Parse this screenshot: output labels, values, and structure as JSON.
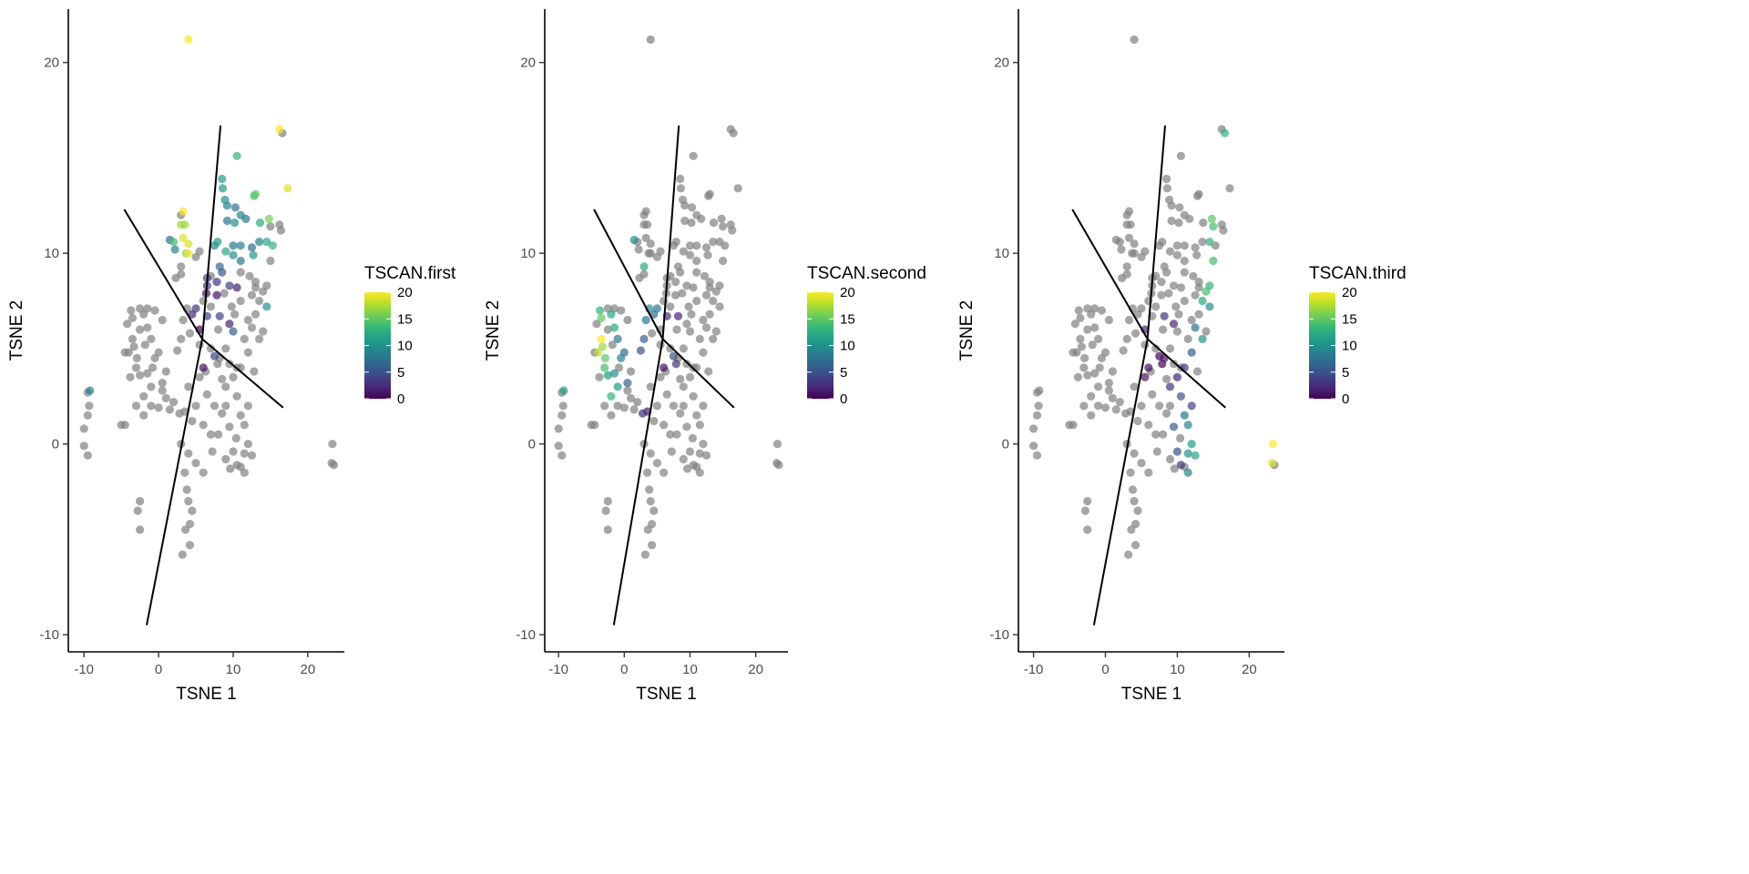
{
  "chart_data": [
    {
      "type": "scatter",
      "xlabel": "TSNE 1",
      "ylabel": "TSNE 2",
      "legend_title": "TSCAN.first",
      "color_column": "TSCAN.first"
    },
    {
      "type": "scatter",
      "xlabel": "TSNE 1",
      "ylabel": "TSNE 2",
      "legend_title": "TSCAN.second",
      "color_column": "TSCAN.second"
    },
    {
      "type": "scatter",
      "xlabel": "TSNE 1",
      "ylabel": "TSNE 2",
      "legend_title": "TSCAN.third",
      "color_column": "TSCAN.third"
    }
  ],
  "shared": {
    "xlim": [
      -12.1,
      24.9
    ],
    "ylim": [
      -10.9,
      22.8
    ],
    "xticks": [
      -10,
      0,
      10,
      20
    ],
    "yticks": [
      -10,
      0,
      10,
      20
    ],
    "color_ticks": [
      0,
      5,
      10,
      15,
      20
    ],
    "color_range": [
      0,
      20
    ],
    "colormap": "viridis",
    "na_color": "#808080",
    "line_color": "#000000",
    "grid": false,
    "legend_position": "right",
    "trajectory": [
      [
        [
          -1.6,
          -9.5
        ],
        [
          5.85,
          5.5
        ],
        [
          8.3,
          16.7
        ]
      ],
      [
        [
          -4.6,
          12.3
        ],
        [
          5.85,
          5.5
        ],
        [
          16.7,
          1.9
        ]
      ]
    ],
    "columns": [
      "x",
      "y",
      "TSCAN.first",
      "TSCAN.second",
      "TSCAN.third"
    ],
    "points": [
      [
        4,
        21.2,
        20,
        null,
        null
      ],
      [
        16.2,
        16.5,
        20,
        null,
        null
      ],
      [
        16.6,
        16.3,
        null,
        null,
        13
      ],
      [
        17.3,
        13.4,
        19,
        null,
        null
      ],
      [
        10.5,
        15.1,
        13,
        null,
        null
      ],
      [
        12.8,
        13.0,
        14,
        null,
        null
      ],
      [
        13,
        13.1,
        15,
        null,
        null
      ],
      [
        8.5,
        13.9,
        11,
        null,
        null
      ],
      [
        8.6,
        13.4,
        11,
        null,
        null
      ],
      [
        8.9,
        12.8,
        10,
        null,
        null
      ],
      [
        9.2,
        12.5,
        9,
        null,
        null
      ],
      [
        10.3,
        12.4,
        8,
        null,
        null
      ],
      [
        11,
        12.0,
        9,
        null,
        null
      ],
      [
        11.7,
        11.8,
        8,
        null,
        null
      ],
      [
        9.2,
        11.7,
        8,
        null,
        null
      ],
      [
        10.2,
        11.6,
        10,
        null,
        null
      ],
      [
        13.6,
        11.6,
        12,
        null,
        null
      ],
      [
        14.8,
        11.8,
        16,
        null,
        15
      ],
      [
        15,
        11.4,
        null,
        null,
        14
      ],
      [
        14.5,
        10.6,
        12,
        null,
        13
      ],
      [
        15.3,
        10.4,
        13,
        null,
        null
      ],
      [
        16.2,
        11.5,
        null,
        null,
        null
      ],
      [
        16.4,
        11.2,
        null,
        null,
        null
      ],
      [
        3,
        12.0,
        null,
        null,
        null
      ],
      [
        3.3,
        12.2,
        20,
        null,
        null
      ],
      [
        3,
        11.5,
        17,
        null,
        null
      ],
      [
        3.5,
        11.5,
        17,
        null,
        null
      ],
      [
        1.5,
        10.7,
        7,
        10,
        null
      ],
      [
        2,
        10.6,
        14,
        null,
        null
      ],
      [
        3.3,
        10.8,
        19,
        null,
        null
      ],
      [
        4,
        10.5,
        19,
        null,
        null
      ],
      [
        4,
        10,
        20,
        null,
        null
      ],
      [
        3.7,
        10,
        16,
        null,
        null
      ],
      [
        2.2,
        10.2,
        9,
        null,
        null
      ],
      [
        5.5,
        10.1,
        null,
        null,
        null
      ],
      [
        7.5,
        10.4,
        9,
        null,
        null
      ],
      [
        7.9,
        10.6,
        11,
        null,
        null
      ],
      [
        9,
        10.1,
        12,
        null,
        null
      ],
      [
        10,
        10.4,
        8,
        null,
        null
      ],
      [
        11,
        10.4,
        9,
        null,
        null
      ],
      [
        12.5,
        10.3,
        7,
        null,
        null
      ],
      [
        13.5,
        10.6,
        9,
        null,
        null
      ],
      [
        12.7,
        9.9,
        11,
        null,
        null
      ],
      [
        10,
        9.9,
        10,
        null,
        null
      ],
      [
        11,
        9.6,
        8,
        null,
        null
      ],
      [
        8.2,
        9.3,
        7,
        null,
        null
      ],
      [
        8.5,
        9,
        5,
        null,
        null
      ],
      [
        6.5,
        8.7,
        4,
        null,
        null
      ],
      [
        6.5,
        8.3,
        3,
        null,
        null
      ],
      [
        7.8,
        8.5,
        3,
        null,
        null
      ],
      [
        9.5,
        8.3,
        4,
        null,
        null
      ],
      [
        10.5,
        8.2,
        2,
        null,
        null
      ],
      [
        6.4,
        7.9,
        1,
        null,
        null
      ],
      [
        7.8,
        7.8,
        1,
        null,
        null
      ],
      [
        3,
        9.3,
        null,
        12,
        null
      ],
      [
        3,
        8.9,
        null,
        null,
        null
      ],
      [
        2.3,
        8.7,
        null,
        null,
        null
      ],
      [
        5,
        7.1,
        3,
        8,
        null
      ],
      [
        4.5,
        6.8,
        2,
        7,
        null
      ],
      [
        6.5,
        6.7,
        4,
        3,
        null
      ],
      [
        8.2,
        6.7,
        4,
        2,
        3
      ],
      [
        9.5,
        6.3,
        2,
        null,
        2
      ],
      [
        5.5,
        6.0,
        0,
        null,
        2
      ],
      [
        10,
        5.9,
        6,
        null,
        null
      ],
      [
        12,
        6.5,
        null,
        null,
        null
      ],
      [
        14.5,
        7.2,
        10,
        null,
        10
      ],
      [
        13.5,
        7.5,
        null,
        null,
        12
      ],
      [
        14,
        8,
        null,
        null,
        14
      ],
      [
        14.5,
        8.3,
        null,
        null,
        13
      ],
      [
        15,
        9.6,
        null,
        null,
        14
      ],
      [
        12.5,
        6.1,
        null,
        null,
        8
      ],
      [
        13.5,
        5.5,
        null,
        null,
        10
      ],
      [
        12,
        4.8,
        null,
        null,
        6
      ],
      [
        11,
        4,
        null,
        null,
        4
      ],
      [
        10,
        3.5,
        null,
        null,
        2
      ],
      [
        8.2,
        4.5,
        null,
        null,
        1
      ],
      [
        7.5,
        4.6,
        4,
        5,
        0
      ],
      [
        7.9,
        4.2,
        null,
        3,
        0
      ],
      [
        6,
        4,
        1,
        1,
        1
      ],
      [
        5.5,
        3.5,
        null,
        null,
        1
      ],
      [
        6.3,
        3.8,
        null,
        null,
        null
      ],
      [
        9,
        3.0,
        null,
        null,
        3
      ],
      [
        10.5,
        2.5,
        null,
        null,
        5
      ],
      [
        12,
        2.0,
        null,
        null,
        4
      ],
      [
        11,
        1.5,
        null,
        null,
        8
      ],
      [
        9.5,
        0.9,
        null,
        null,
        6
      ],
      [
        11.5,
        1.0,
        null,
        null,
        9
      ],
      [
        12,
        0,
        null,
        null,
        11
      ],
      [
        11.5,
        -0.5,
        null,
        null,
        10
      ],
      [
        12.5,
        -0.6,
        null,
        null,
        12
      ],
      [
        10,
        -0.4,
        null,
        null,
        5
      ],
      [
        10.5,
        -1.1,
        null,
        null,
        3
      ],
      [
        11.5,
        -1.5,
        null,
        null,
        9
      ],
      [
        9,
        -0.8,
        null,
        null,
        null
      ],
      [
        11,
        -1.2,
        null,
        null,
        null
      ],
      [
        -4,
        4.8,
        null,
        18,
        null
      ],
      [
        -3.5,
        5.5,
        null,
        20,
        null
      ],
      [
        -3.3,
        5.1,
        null,
        17,
        null
      ],
      [
        -2.9,
        4.5,
        null,
        15,
        null
      ],
      [
        -3,
        4.0,
        null,
        14,
        null
      ],
      [
        -3.7,
        7.0,
        null,
        13,
        null
      ],
      [
        -3.5,
        6.6,
        null,
        15,
        null
      ],
      [
        -2,
        6.8,
        null,
        12,
        null
      ],
      [
        -1.5,
        6.1,
        null,
        12,
        null
      ],
      [
        -1,
        5.5,
        null,
        8,
        null
      ],
      [
        -0.5,
        4.5,
        null,
        9,
        null
      ],
      [
        0,
        4.8,
        null,
        7,
        null
      ],
      [
        -1.5,
        3.7,
        null,
        10,
        null
      ],
      [
        -2.5,
        3.6,
        null,
        11,
        null
      ],
      [
        -1,
        3,
        null,
        11,
        null
      ],
      [
        -2,
        2.5,
        null,
        13,
        null
      ],
      [
        0.5,
        3.2,
        null,
        6,
        null
      ],
      [
        2.5,
        4.9,
        null,
        5,
        null
      ],
      [
        3,
        5.5,
        null,
        6,
        null
      ],
      [
        3.3,
        6.5,
        null,
        8,
        null
      ],
      [
        3.8,
        7.1,
        null,
        10,
        null
      ],
      [
        2.8,
        1.6,
        null,
        3,
        null
      ],
      [
        3.5,
        1.7,
        null,
        2,
        null
      ],
      [
        -4.5,
        4.8,
        null,
        null,
        null
      ],
      [
        -2.5,
        6.0,
        null,
        null,
        null
      ],
      [
        -3,
        2,
        null,
        null,
        null
      ],
      [
        -1,
        2,
        null,
        null,
        null
      ],
      [
        0,
        1.9,
        null,
        null,
        null
      ],
      [
        1,
        2.4,
        null,
        null,
        null
      ],
      [
        2,
        2.2,
        null,
        null,
        null
      ],
      [
        -5,
        1,
        null,
        null,
        null
      ],
      [
        -4.5,
        1,
        null,
        null,
        null
      ],
      [
        1,
        3.8,
        null,
        null,
        null
      ],
      [
        -3.8,
        3.5,
        null,
        null,
        null
      ],
      [
        -2,
        1.5,
        null,
        null,
        null
      ],
      [
        4,
        3,
        null,
        null,
        null
      ],
      [
        5,
        2,
        null,
        null,
        null
      ],
      [
        6,
        1,
        null,
        null,
        null
      ],
      [
        7,
        0.5,
        null,
        null,
        null
      ],
      [
        8,
        0.5,
        null,
        null,
        null
      ],
      [
        7.5,
        2,
        null,
        null,
        null
      ],
      [
        9,
        2,
        null,
        null,
        null
      ],
      [
        3,
        0,
        null,
        null,
        null
      ],
      [
        4,
        -0.5,
        null,
        null,
        null
      ],
      [
        5,
        -1,
        null,
        null,
        null
      ],
      [
        6,
        -1.5,
        null,
        null,
        null
      ],
      [
        3.5,
        -1.5,
        null,
        null,
        null
      ],
      [
        3.8,
        -2.4,
        null,
        null,
        null
      ],
      [
        4,
        -3,
        null,
        null,
        null
      ],
      [
        4.5,
        -3.5,
        null,
        null,
        null
      ],
      [
        4.2,
        -4.2,
        null,
        null,
        null
      ],
      [
        3.6,
        -4.5,
        null,
        null,
        null
      ],
      [
        4.2,
        -5.3,
        null,
        null,
        null
      ],
      [
        3.2,
        -5.8,
        null,
        null,
        null
      ],
      [
        -2.5,
        -3,
        null,
        null,
        null
      ],
      [
        -2.8,
        -3.5,
        null,
        null,
        null
      ],
      [
        -2.5,
        -4.5,
        null,
        null,
        null
      ],
      [
        -10,
        -0.1,
        null,
        null,
        null
      ],
      [
        -9.5,
        -0.6,
        null,
        null,
        null
      ],
      [
        -10,
        0.8,
        null,
        null,
        null
      ],
      [
        -9.5,
        1.5,
        null,
        null,
        null
      ],
      [
        -9.3,
        2,
        null,
        null,
        null
      ],
      [
        -9.5,
        2.7,
        null,
        null,
        null
      ],
      [
        -9.2,
        2.8,
        9,
        11,
        null
      ],
      [
        23.3,
        0,
        null,
        null,
        20
      ],
      [
        23.2,
        -1,
        null,
        null,
        19
      ],
      [
        23.5,
        -1.1,
        null,
        null,
        null
      ],
      [
        7,
        5,
        null,
        null,
        null
      ],
      [
        8,
        6,
        null,
        null,
        null
      ],
      [
        9,
        5,
        null,
        null,
        null
      ],
      [
        10.5,
        4,
        null,
        null,
        null
      ],
      [
        11,
        7.5,
        null,
        null,
        null
      ],
      [
        12.5,
        7.8,
        null,
        null,
        null
      ],
      [
        13,
        8.2,
        null,
        null,
        null
      ],
      [
        9.8,
        7.2,
        null,
        null,
        null
      ],
      [
        11,
        9,
        null,
        null,
        null
      ],
      [
        12.2,
        8.8,
        null,
        null,
        null
      ],
      [
        13,
        8.5,
        null,
        null,
        null
      ],
      [
        7,
        8.8,
        null,
        null,
        null
      ],
      [
        5,
        9.8,
        null,
        null,
        null
      ],
      [
        6,
        7.5,
        null,
        null,
        null
      ],
      [
        0.5,
        6.5,
        null,
        null,
        null
      ],
      [
        -0.5,
        7,
        null,
        null,
        null
      ],
      [
        -2.5,
        7.1,
        null,
        null,
        null
      ],
      [
        -1.5,
        7.1,
        null,
        null,
        null
      ],
      [
        -4.2,
        6.3,
        null,
        null,
        null
      ],
      [
        -1.8,
        5.2,
        null,
        null,
        null
      ],
      [
        -0.8,
        4.0,
        null,
        null,
        null
      ],
      [
        0.5,
        2.8,
        null,
        null,
        null
      ],
      [
        1.5,
        1.8,
        null,
        null,
        null
      ],
      [
        4.5,
        1.2,
        null,
        null,
        null
      ],
      [
        6.5,
        2.6,
        null,
        null,
        null
      ],
      [
        8.5,
        3.4,
        null,
        null,
        null
      ],
      [
        9.5,
        4.2,
        null,
        null,
        null
      ],
      [
        11.5,
        5.5,
        null,
        null,
        null
      ],
      [
        13,
        6.8,
        null,
        null,
        null
      ],
      [
        14,
        5.9,
        null,
        null,
        null
      ],
      [
        12.8,
        3.8,
        null,
        null,
        null
      ],
      [
        8.5,
        1.6,
        null,
        null,
        null
      ],
      [
        7.2,
        -0.4,
        null,
        null,
        null
      ],
      [
        9.6,
        -1.3,
        null,
        null,
        null
      ],
      [
        10.4,
        0.3,
        null,
        null,
        null
      ],
      [
        5.5,
        5.2,
        null,
        null,
        null
      ],
      [
        4.2,
        5.8,
        null,
        null,
        null
      ],
      [
        7,
        7.2,
        null,
        null,
        null
      ],
      [
        8.8,
        7.9,
        null,
        null,
        null
      ],
      [
        10.2,
        6.8,
        null,
        null,
        null
      ]
    ]
  }
}
